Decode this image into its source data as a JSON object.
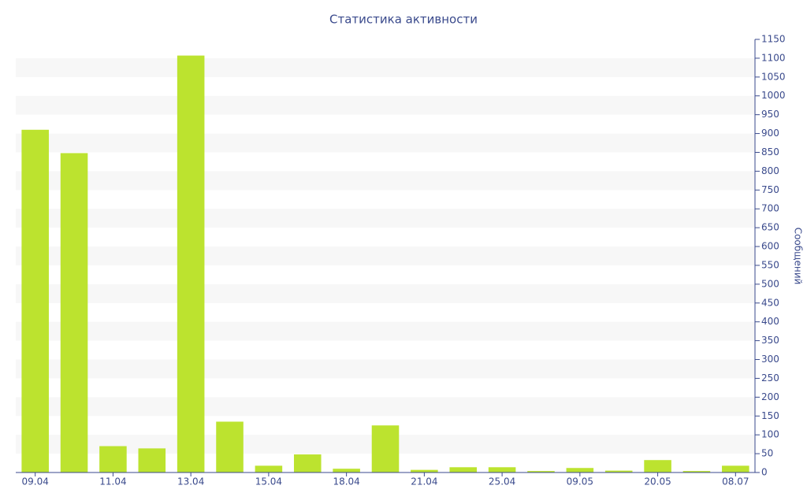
{
  "chart_data": {
    "type": "bar",
    "title": "Статистика активности",
    "y_label": "Сообщений",
    "categories": [
      "09.04",
      null,
      "11.04",
      null,
      "13.04",
      null,
      "15.04",
      null,
      "18.04",
      null,
      "21.04",
      null,
      "25.04",
      null,
      "09.05",
      null,
      "20.05",
      null,
      "08.07"
    ],
    "values": [
      910,
      848,
      70,
      64,
      1107,
      135,
      18,
      48,
      10,
      125,
      7,
      14,
      14,
      4,
      12,
      5,
      33,
      4,
      18
    ],
    "color": "#bce32f",
    "ylim": [
      0,
      1150
    ],
    "yticks": [
      0,
      50,
      100,
      150,
      200,
      250,
      300,
      350,
      400,
      450,
      500,
      550,
      600,
      650,
      700,
      750,
      800,
      850,
      900,
      950,
      1000,
      1050,
      1100,
      1150
    ],
    "grid": "bands",
    "axis_side": "right"
  }
}
